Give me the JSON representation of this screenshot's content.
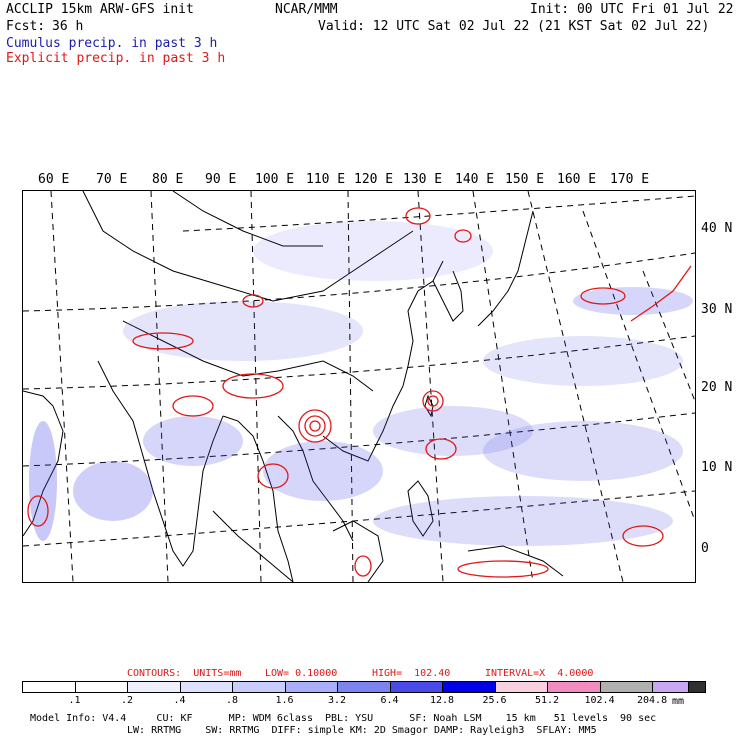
{
  "header": {
    "model": "ACCLIP 15km ARW-GFS init",
    "center": "NCAR/MMM",
    "init": "Init: 00 UTC Fri 01 Jul 22",
    "fcst_label": "Fcst:",
    "fcst_value": "36 h",
    "valid": "Valid: 12 UTC Sat 02 Jul 22 (21 KST Sat 02 Jul 22)",
    "legend_cumulus": "Cumulus precip. in past 3 h",
    "legend_explicit": "Explicit precip. in past 3 h"
  },
  "map": {
    "lon_labels": [
      "60 E",
      "70 E",
      "80 E",
      "90 E",
      "100 E",
      "110 E",
      "120 E",
      "130 E",
      "140 E",
      "150 E",
      "160 E",
      "170 E"
    ],
    "lat_labels": [
      "40 N",
      "30 N",
      "20 N",
      "10 N",
      "0"
    ]
  },
  "contours": {
    "text_a": "CONTOURS:  UNITS=mm",
    "text_b": "LOW= 0.10000",
    "text_c": "HIGH=  102.40",
    "text_d": "INTERVAL=X  4.0000"
  },
  "colorbar": {
    "labels": [
      ".1",
      ".2",
      ".4",
      ".8",
      "1.6",
      "3.2",
      "6.4",
      "12.8",
      "25.6",
      "51.2",
      "102.4",
      "204.8"
    ],
    "units": "mm",
    "colors": [
      "#ffffff",
      "#ffffff",
      "#eef0ff",
      "#dde0ff",
      "#c8ccff",
      "#a8aef8",
      "#7c84f0",
      "#4a4ae8",
      "#0000e6",
      "#f8d0e0",
      "#f08cc0",
      "#b0b0b0",
      "#303030",
      "#c8a8f0"
    ]
  },
  "footer": {
    "line1": "Model Info: V4.4     CU: KF      MP: WDM 6class  PBL: YSU      SF: Noah LSM    15 km   51 levels  90 sec",
    "line2": "LW: RRTMG    SW: RRTMG  DIFF: simple KM: 2D Smagor DAMP: Rayleigh3  SFLAY: MM5"
  }
}
